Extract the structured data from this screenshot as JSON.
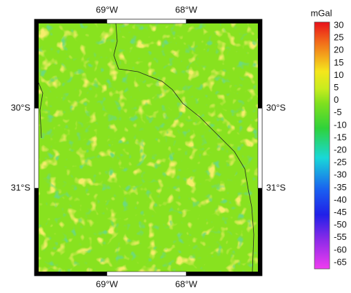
{
  "map": {
    "lon_labels": [
      "69°W",
      "68°W"
    ],
    "lat_labels": [
      "30°S",
      "31°S"
    ]
  },
  "colorbar": {
    "title": "mGal",
    "ticks": [
      30,
      25,
      20,
      15,
      10,
      5,
      0,
      -5,
      -10,
      -15,
      -20,
      -25,
      -30,
      -35,
      -40,
      -45,
      -50,
      -55,
      -60,
      -65
    ]
  }
}
